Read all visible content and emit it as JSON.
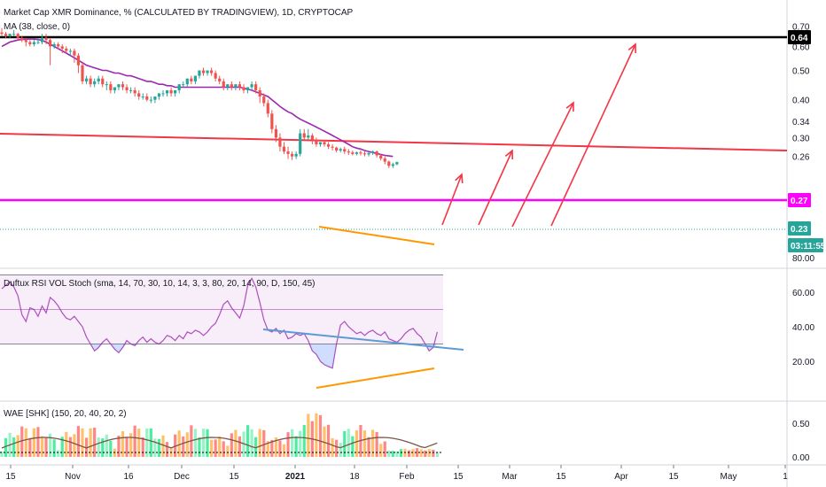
{
  "chart_data": [
    {
      "panel": "price",
      "type": "candlestick",
      "title": "Market Cap XMR Dominance, % (CALCULATED BY TRADINGVIEW), 1D, CRYPTOCAP",
      "indicator_label": "MA (38, close, 0)",
      "y_ticks": [
        "0.70",
        "0.60",
        "0.50",
        "0.40",
        "0.34",
        "0.30",
        "0.26"
      ],
      "price_labels": [
        "0.64",
        "0.27",
        "0.23",
        "03:11:55"
      ],
      "candles": [
        {
          "o": 0.667,
          "h": 0.69,
          "c": 0.66,
          "l": 0.65
        },
        {
          "o": 0.66,
          "h": 0.67,
          "c": 0.65,
          "l": 0.64
        },
        {
          "o": 0.65,
          "h": 0.66,
          "c": 0.66,
          "l": 0.64
        },
        {
          "o": 0.66,
          "h": 0.68,
          "c": 0.66,
          "l": 0.65
        },
        {
          "o": 0.66,
          "h": 0.665,
          "c": 0.64,
          "l": 0.63
        },
        {
          "o": 0.64,
          "h": 0.65,
          "c": 0.63,
          "l": 0.62
        },
        {
          "o": 0.63,
          "h": 0.64,
          "c": 0.62,
          "l": 0.6
        },
        {
          "o": 0.62,
          "h": 0.63,
          "c": 0.61,
          "l": 0.6
        },
        {
          "o": 0.61,
          "h": 0.63,
          "c": 0.62,
          "l": 0.6
        },
        {
          "o": 0.62,
          "h": 0.64,
          "c": 0.62,
          "l": 0.61
        },
        {
          "o": 0.62,
          "h": 0.66,
          "c": 0.64,
          "l": 0.61
        },
        {
          "o": 0.64,
          "h": 0.66,
          "c": 0.63,
          "l": 0.61
        },
        {
          "o": 0.63,
          "h": 0.64,
          "c": 0.6,
          "l": 0.52
        },
        {
          "o": 0.6,
          "h": 0.62,
          "c": 0.61,
          "l": 0.59
        },
        {
          "o": 0.61,
          "h": 0.62,
          "c": 0.6,
          "l": 0.59
        },
        {
          "o": 0.6,
          "h": 0.61,
          "c": 0.59,
          "l": 0.57
        },
        {
          "o": 0.59,
          "h": 0.6,
          "c": 0.58,
          "l": 0.57
        },
        {
          "o": 0.58,
          "h": 0.59,
          "c": 0.58,
          "l": 0.56
        },
        {
          "o": 0.58,
          "h": 0.59,
          "c": 0.56,
          "l": 0.53
        },
        {
          "o": 0.56,
          "h": 0.57,
          "c": 0.52,
          "l": 0.49
        },
        {
          "o": 0.52,
          "h": 0.53,
          "c": 0.46,
          "l": 0.45
        },
        {
          "o": 0.46,
          "h": 0.48,
          "c": 0.47,
          "l": 0.45
        },
        {
          "o": 0.47,
          "h": 0.48,
          "c": 0.45,
          "l": 0.44
        },
        {
          "o": 0.45,
          "h": 0.47,
          "c": 0.46,
          "l": 0.44
        },
        {
          "o": 0.46,
          "h": 0.48,
          "c": 0.47,
          "l": 0.45
        },
        {
          "o": 0.47,
          "h": 0.48,
          "c": 0.45,
          "l": 0.44
        },
        {
          "o": 0.45,
          "h": 0.46,
          "c": 0.45,
          "l": 0.43
        },
        {
          "o": 0.45,
          "h": 0.46,
          "c": 0.43,
          "l": 0.42
        },
        {
          "o": 0.43,
          "h": 0.44,
          "c": 0.44,
          "l": 0.42
        },
        {
          "o": 0.44,
          "h": 0.45,
          "c": 0.45,
          "l": 0.43
        },
        {
          "o": 0.45,
          "h": 0.46,
          "c": 0.44,
          "l": 0.43
        },
        {
          "o": 0.44,
          "h": 0.45,
          "c": 0.43,
          "l": 0.42
        },
        {
          "o": 0.43,
          "h": 0.44,
          "c": 0.43,
          "l": 0.42
        },
        {
          "o": 0.43,
          "h": 0.44,
          "c": 0.42,
          "l": 0.41
        },
        {
          "o": 0.42,
          "h": 0.43,
          "c": 0.41,
          "l": 0.4
        },
        {
          "o": 0.41,
          "h": 0.42,
          "c": 0.41,
          "l": 0.4
        },
        {
          "o": 0.41,
          "h": 0.42,
          "c": 0.4,
          "l": 0.395
        },
        {
          "o": 0.4,
          "h": 0.41,
          "c": 0.4,
          "l": 0.39
        },
        {
          "o": 0.4,
          "h": 0.41,
          "c": 0.41,
          "l": 0.39
        },
        {
          "o": 0.41,
          "h": 0.42,
          "c": 0.42,
          "l": 0.4
        },
        {
          "o": 0.42,
          "h": 0.43,
          "c": 0.42,
          "l": 0.41
        },
        {
          "o": 0.42,
          "h": 0.43,
          "c": 0.43,
          "l": 0.41
        },
        {
          "o": 0.43,
          "h": 0.44,
          "c": 0.42,
          "l": 0.41
        },
        {
          "o": 0.42,
          "h": 0.43,
          "c": 0.43,
          "l": 0.41
        },
        {
          "o": 0.43,
          "h": 0.45,
          "c": 0.45,
          "l": 0.42
        },
        {
          "o": 0.45,
          "h": 0.46,
          "c": 0.45,
          "l": 0.44
        },
        {
          "o": 0.45,
          "h": 0.47,
          "c": 0.47,
          "l": 0.44
        },
        {
          "o": 0.47,
          "h": 0.48,
          "c": 0.46,
          "l": 0.45
        },
        {
          "o": 0.46,
          "h": 0.48,
          "c": 0.48,
          "l": 0.45
        },
        {
          "o": 0.48,
          "h": 0.5,
          "c": 0.5,
          "l": 0.47
        },
        {
          "o": 0.5,
          "h": 0.51,
          "c": 0.49,
          "l": 0.48
        },
        {
          "o": 0.49,
          "h": 0.5,
          "c": 0.5,
          "l": 0.48
        },
        {
          "o": 0.5,
          "h": 0.51,
          "c": 0.49,
          "l": 0.48
        },
        {
          "o": 0.49,
          "h": 0.5,
          "c": 0.47,
          "l": 0.46
        },
        {
          "o": 0.47,
          "h": 0.48,
          "c": 0.46,
          "l": 0.45
        },
        {
          "o": 0.46,
          "h": 0.47,
          "c": 0.44,
          "l": 0.43
        },
        {
          "o": 0.44,
          "h": 0.45,
          "c": 0.45,
          "l": 0.43
        },
        {
          "o": 0.45,
          "h": 0.46,
          "c": 0.44,
          "l": 0.43
        },
        {
          "o": 0.44,
          "h": 0.45,
          "c": 0.45,
          "l": 0.43
        },
        {
          "o": 0.45,
          "h": 0.46,
          "c": 0.44,
          "l": 0.43
        },
        {
          "o": 0.44,
          "h": 0.45,
          "c": 0.43,
          "l": 0.42
        },
        {
          "o": 0.43,
          "h": 0.44,
          "c": 0.44,
          "l": 0.42
        },
        {
          "o": 0.44,
          "h": 0.46,
          "c": 0.45,
          "l": 0.43
        },
        {
          "o": 0.45,
          "h": 0.46,
          "c": 0.43,
          "l": 0.42
        },
        {
          "o": 0.43,
          "h": 0.44,
          "c": 0.41,
          "l": 0.39
        },
        {
          "o": 0.41,
          "h": 0.42,
          "c": 0.39,
          "l": 0.38
        },
        {
          "o": 0.39,
          "h": 0.4,
          "c": 0.36,
          "l": 0.35
        },
        {
          "o": 0.36,
          "h": 0.37,
          "c": 0.32,
          "l": 0.31
        },
        {
          "o": 0.32,
          "h": 0.33,
          "c": 0.3,
          "l": 0.29
        },
        {
          "o": 0.3,
          "h": 0.31,
          "c": 0.28,
          "l": 0.27
        },
        {
          "o": 0.28,
          "h": 0.29,
          "c": 0.27,
          "l": 0.265
        },
        {
          "o": 0.27,
          "h": 0.28,
          "c": 0.265,
          "l": 0.255
        },
        {
          "o": 0.265,
          "h": 0.27,
          "c": 0.26,
          "l": 0.253
        },
        {
          "o": 0.26,
          "h": 0.27,
          "c": 0.265,
          "l": 0.255
        },
        {
          "o": 0.265,
          "h": 0.32,
          "c": 0.31,
          "l": 0.26
        },
        {
          "o": 0.31,
          "h": 0.32,
          "c": 0.3,
          "l": 0.295
        },
        {
          "o": 0.3,
          "h": 0.32,
          "c": 0.305,
          "l": 0.295
        },
        {
          "o": 0.305,
          "h": 0.31,
          "c": 0.295,
          "l": 0.285
        },
        {
          "o": 0.295,
          "h": 0.3,
          "c": 0.285,
          "l": 0.28
        },
        {
          "o": 0.285,
          "h": 0.29,
          "c": 0.29,
          "l": 0.28
        },
        {
          "o": 0.29,
          "h": 0.295,
          "c": 0.285,
          "l": 0.28
        },
        {
          "o": 0.285,
          "h": 0.29,
          "c": 0.28,
          "l": 0.275
        },
        {
          "o": 0.28,
          "h": 0.285,
          "c": 0.278,
          "l": 0.272
        },
        {
          "o": 0.278,
          "h": 0.28,
          "c": 0.272,
          "l": 0.268
        },
        {
          "o": 0.272,
          "h": 0.278,
          "c": 0.275,
          "l": 0.268
        },
        {
          "o": 0.275,
          "h": 0.28,
          "c": 0.27,
          "l": 0.265
        },
        {
          "o": 0.27,
          "h": 0.275,
          "c": 0.268,
          "l": 0.263
        },
        {
          "o": 0.268,
          "h": 0.272,
          "c": 0.265,
          "l": 0.262
        },
        {
          "o": 0.265,
          "h": 0.27,
          "c": 0.268,
          "l": 0.262
        },
        {
          "o": 0.268,
          "h": 0.272,
          "c": 0.266,
          "l": 0.262
        },
        {
          "o": 0.266,
          "h": 0.27,
          "c": 0.264,
          "l": 0.26
        },
        {
          "o": 0.264,
          "h": 0.268,
          "c": 0.267,
          "l": 0.26
        },
        {
          "o": 0.267,
          "h": 0.272,
          "c": 0.27,
          "l": 0.263
        },
        {
          "o": 0.27,
          "h": 0.272,
          "c": 0.262,
          "l": 0.258
        },
        {
          "o": 0.262,
          "h": 0.265,
          "c": 0.256,
          "l": 0.252
        },
        {
          "o": 0.256,
          "h": 0.26,
          "c": 0.25,
          "l": 0.245
        },
        {
          "o": 0.25,
          "h": 0.252,
          "c": 0.242,
          "l": 0.238
        },
        {
          "o": 0.242,
          "h": 0.248,
          "c": 0.245,
          "l": 0.238
        },
        {
          "o": 0.245,
          "h": 0.25,
          "c": 0.249,
          "l": 0.243
        }
      ],
      "ma": [
        0.6,
        0.61,
        0.62,
        0.625,
        0.63,
        0.632,
        0.634,
        0.635,
        0.634,
        0.632,
        0.628,
        0.62,
        0.61,
        0.6,
        0.59,
        0.58,
        0.57,
        0.56,
        0.55,
        0.54,
        0.53,
        0.52,
        0.515,
        0.51,
        0.505,
        0.5,
        0.5,
        0.495,
        0.49,
        0.49,
        0.485,
        0.48,
        0.48,
        0.475,
        0.47,
        0.465,
        0.46,
        0.46,
        0.455,
        0.45,
        0.45,
        0.445,
        0.445,
        0.44,
        0.44,
        0.44,
        0.44,
        0.44,
        0.44,
        0.44,
        0.44,
        0.44,
        0.44,
        0.44,
        0.44,
        0.44,
        0.44,
        0.44,
        0.44,
        0.44,
        0.437,
        0.433,
        0.43,
        0.425,
        0.42,
        0.415,
        0.41,
        0.4,
        0.39,
        0.38,
        0.372,
        0.365,
        0.36,
        0.352,
        0.345,
        0.34,
        0.335,
        0.33,
        0.325,
        0.32,
        0.315,
        0.31,
        0.305,
        0.3,
        0.295,
        0.29,
        0.285,
        0.28,
        0.277,
        0.275,
        0.272,
        0.27,
        0.268,
        0.266,
        0.264,
        0.262,
        0.261,
        0.26
      ],
      "colors": {
        "up": "#26a69a",
        "down": "#ef5350",
        "ma": "#9c27b0",
        "red_line": "#f23645",
        "magenta_line": "#ff00ff",
        "black_line": "#000000",
        "orange": "#ff9800",
        "teal_price": "#26a69a"
      }
    },
    {
      "panel": "rsi",
      "type": "line",
      "indicator_label": "Duftux RSI VOL Stoch (sma, 14, 70, 30, 10, 14, 3, 3, 80, 20, 14, 90, D, 150, 45)",
      "y_ticks": [
        "80.00",
        "60.00",
        "40.00",
        "20.00"
      ],
      "band": {
        "upper": 70,
        "middle": 50,
        "lower": 30
      },
      "values": [
        62,
        64,
        66,
        63,
        58,
        47,
        43,
        51,
        50,
        46,
        52,
        48,
        57,
        55,
        52,
        48,
        45,
        44,
        46,
        43,
        40,
        34,
        30,
        26,
        28,
        31,
        33,
        30,
        27,
        25,
        28,
        32,
        30,
        29,
        32,
        34,
        31,
        33,
        31,
        30,
        32,
        35,
        34,
        32,
        35,
        33,
        37,
        36,
        38,
        37,
        35,
        37,
        40,
        42,
        47,
        53,
        55,
        51,
        48,
        45,
        52,
        64,
        68,
        63,
        54,
        44,
        38,
        37,
        39,
        36,
        38,
        33,
        34,
        36,
        35,
        36,
        32,
        26,
        24,
        20,
        18,
        17,
        16,
        30,
        41,
        43,
        40,
        38,
        36,
        37,
        35,
        37,
        38,
        36,
        35,
        37,
        33,
        32,
        31,
        33,
        36,
        38,
        39,
        36,
        34,
        30,
        26,
        28,
        37
      ]
    },
    {
      "panel": "wae",
      "type": "bar",
      "indicator_label": "WAE [SHK] (150, 20, 40, 20, 2)",
      "y_ticks": [
        "0.50",
        "0.00"
      ],
      "x_ticks": [
        "15",
        "Nov",
        "16",
        "Dec",
        "15",
        "2021",
        "18",
        "Feb",
        "15",
        "Mar",
        "15",
        "Apr",
        "15",
        "May",
        "1"
      ]
    }
  ]
}
